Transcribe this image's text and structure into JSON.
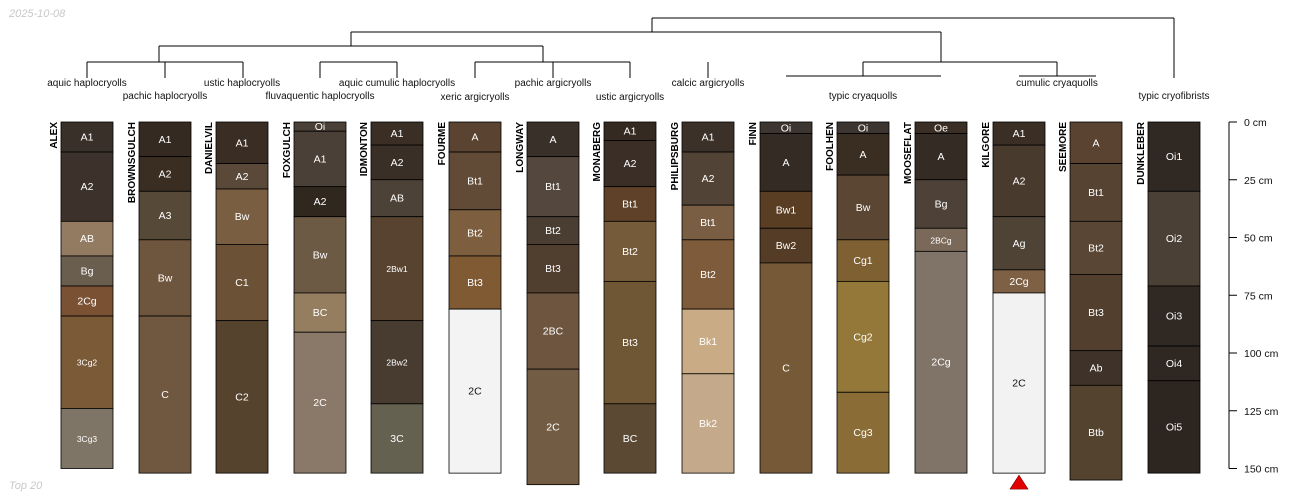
{
  "date_label": "2025-10-08",
  "footer_label": "Top 20",
  "scale": {
    "max_depth": 150,
    "unit": "cm",
    "ticks": [
      {
        "depth": 0,
        "label": "0 cm"
      },
      {
        "depth": 25,
        "label": "25 cm"
      },
      {
        "depth": 50,
        "label": "50 cm"
      },
      {
        "depth": 75,
        "label": "75 cm"
      },
      {
        "depth": 100,
        "label": "100 cm"
      },
      {
        "depth": 125,
        "label": "125 cm"
      },
      {
        "depth": 150,
        "label": "150 cm"
      }
    ]
  },
  "taxa": [
    {
      "label": "aquic haplocryolls"
    },
    {
      "label": "pachic haplocryolls"
    },
    {
      "label": "ustic haplocryolls"
    },
    {
      "label": "fluvaquentic haplocryolls"
    },
    {
      "label": "aquic cumulic haplocryolls"
    },
    {
      "label": "xeric argicryolls"
    },
    {
      "label": "pachic argicryolls"
    },
    {
      "label": "ustic argicryolls"
    },
    {
      "label": "calcic argicryolls"
    },
    {
      "label": "typic cryaquolls"
    },
    {
      "label": "cumulic cryaquolls"
    },
    {
      "label": "typic cryofibrists"
    }
  ],
  "profiles": [
    {
      "name": "ALEX",
      "horizons": [
        {
          "name": "A1",
          "top": 0,
          "bottom": 13,
          "color": "#3a302a"
        },
        {
          "name": "A2",
          "top": 13,
          "bottom": 43,
          "color": "#3c322b"
        },
        {
          "name": "AB",
          "top": 43,
          "bottom": 58,
          "color": "#937b62"
        },
        {
          "name": "Bg",
          "top": 58,
          "bottom": 71,
          "color": "#6a5e4e"
        },
        {
          "name": "2Cg",
          "top": 71,
          "bottom": 84,
          "color": "#7a5233"
        },
        {
          "name": "3Cg2",
          "top": 84,
          "bottom": 124,
          "color": "#7a5a37"
        },
        {
          "name": "3Cg3",
          "top": 124,
          "bottom": 150,
          "color": "#7e7566"
        }
      ]
    },
    {
      "name": "BROWNSGULCH",
      "horizons": [
        {
          "name": "A1",
          "top": 0,
          "bottom": 15,
          "color": "#352a22"
        },
        {
          "name": "A2",
          "top": 15,
          "bottom": 30,
          "color": "#3a2d22"
        },
        {
          "name": "A3",
          "top": 30,
          "bottom": 51,
          "color": "#574938"
        },
        {
          "name": "Bw",
          "top": 51,
          "bottom": 84,
          "color": "#6e553d"
        },
        {
          "name": "C",
          "top": 84,
          "bottom": 152,
          "color": "#705840"
        }
      ]
    },
    {
      "name": "DANIELVIL",
      "horizons": [
        {
          "name": "A1",
          "top": 0,
          "bottom": 18,
          "color": "#3a2d24"
        },
        {
          "name": "A2",
          "top": 18,
          "bottom": 29,
          "color": "#5a4838"
        },
        {
          "name": "Bw",
          "top": 29,
          "bottom": 53,
          "color": "#7a5e41"
        },
        {
          "name": "C1",
          "top": 53,
          "bottom": 86,
          "color": "#6b5236"
        },
        {
          "name": "C2",
          "top": 86,
          "bottom": 152,
          "color": "#56432d"
        }
      ]
    },
    {
      "name": "FOXGULCH",
      "horizons": [
        {
          "name": "Oi",
          "top": 0,
          "bottom": 4,
          "color": "#4a4037"
        },
        {
          "name": "A1",
          "top": 4,
          "bottom": 28,
          "color": "#4b4037"
        },
        {
          "name": "A2",
          "top": 28,
          "bottom": 41,
          "color": "#30271f"
        },
        {
          "name": "Bw",
          "top": 41,
          "bottom": 74,
          "color": "#6d5a45"
        },
        {
          "name": "BC",
          "top": 74,
          "bottom": 91,
          "color": "#957d5f"
        },
        {
          "name": "2C",
          "top": 91,
          "bottom": 152,
          "color": "#8a7868"
        }
      ]
    },
    {
      "name": "IDMONTON",
      "horizons": [
        {
          "name": "A1",
          "top": 0,
          "bottom": 10,
          "color": "#3a2e25"
        },
        {
          "name": "A2",
          "top": 10,
          "bottom": 25,
          "color": "#3a2f26"
        },
        {
          "name": "AB",
          "top": 25,
          "bottom": 41,
          "color": "#4d4238"
        },
        {
          "name": "2Bw1",
          "top": 41,
          "bottom": 86,
          "color": "#574330"
        },
        {
          "name": "2Bw2",
          "top": 86,
          "bottom": 122,
          "color": "#483c31"
        },
        {
          "name": "3C",
          "top": 122,
          "bottom": 152,
          "color": "#656151"
        }
      ]
    },
    {
      "name": "FOURME",
      "horizons": [
        {
          "name": "A",
          "top": 0,
          "bottom": 13,
          "color": "#5a4330"
        },
        {
          "name": "Bt1",
          "top": 13,
          "bottom": 38,
          "color": "#614b36"
        },
        {
          "name": "Bt2",
          "top": 38,
          "bottom": 58,
          "color": "#7d5f40"
        },
        {
          "name": "Bt3",
          "top": 58,
          "bottom": 81,
          "color": "#805a33"
        },
        {
          "name": "2C",
          "top": 81,
          "bottom": 152,
          "color": "#f3f3f3"
        }
      ]
    },
    {
      "name": "LONGWAY",
      "horizons": [
        {
          "name": "A",
          "top": 0,
          "bottom": 15,
          "color": "#3a302a"
        },
        {
          "name": "Bt1",
          "top": 15,
          "bottom": 41,
          "color": "#54483e"
        },
        {
          "name": "Bt2",
          "top": 41,
          "bottom": 53,
          "color": "#4a3e33"
        },
        {
          "name": "Bt3",
          "top": 53,
          "bottom": 74,
          "color": "#503e2e"
        },
        {
          "name": "2BC",
          "top": 74,
          "bottom": 107,
          "color": "#6d5540"
        },
        {
          "name": "2C",
          "top": 107,
          "bottom": 157,
          "color": "#735c44"
        }
      ]
    },
    {
      "name": "MONABERG",
      "horizons": [
        {
          "name": "A1",
          "top": 0,
          "bottom": 8,
          "color": "#352a22"
        },
        {
          "name": "A2",
          "top": 8,
          "bottom": 28,
          "color": "#3a2e26"
        },
        {
          "name": "Bt1",
          "top": 28,
          "bottom": 43,
          "color": "#5e4128"
        },
        {
          "name": "Bt2",
          "top": 43,
          "bottom": 69,
          "color": "#755b3a"
        },
        {
          "name": "Bt3",
          "top": 69,
          "bottom": 122,
          "color": "#6f5634"
        },
        {
          "name": "BC",
          "top": 122,
          "bottom": 152,
          "color": "#5b4934"
        }
      ]
    },
    {
      "name": "PHILIPSBURG",
      "horizons": [
        {
          "name": "A1",
          "top": 0,
          "bottom": 13,
          "color": "#3c3129"
        },
        {
          "name": "A2",
          "top": 13,
          "bottom": 36,
          "color": "#514436"
        },
        {
          "name": "Bt1",
          "top": 36,
          "bottom": 51,
          "color": "#7a5e43"
        },
        {
          "name": "Bt2",
          "top": 51,
          "bottom": 81,
          "color": "#7e5c3b"
        },
        {
          "name": "Bk1",
          "top": 81,
          "bottom": 109,
          "color": "#c9ab85"
        },
        {
          "name": "Bk2",
          "top": 109,
          "bottom": 152,
          "color": "#c4aa8a"
        }
      ]
    },
    {
      "name": "FINN",
      "horizons": [
        {
          "name": "Oi",
          "top": 0,
          "bottom": 5,
          "color": "#3c3530"
        },
        {
          "name": "A",
          "top": 5,
          "bottom": 30,
          "color": "#342b25"
        },
        {
          "name": "Bw1",
          "top": 30,
          "bottom": 46,
          "color": "#5a3e24"
        },
        {
          "name": "Bw2",
          "top": 46,
          "bottom": 61,
          "color": "#543c26"
        },
        {
          "name": "C",
          "top": 61,
          "bottom": 152,
          "color": "#765a37"
        }
      ]
    },
    {
      "name": "FOOLHEN",
      "horizons": [
        {
          "name": "Oi",
          "top": 0,
          "bottom": 5,
          "color": "#3c3530"
        },
        {
          "name": "A",
          "top": 5,
          "bottom": 23,
          "color": "#3a2e23"
        },
        {
          "name": "Bw",
          "top": 23,
          "bottom": 51,
          "color": "#5a4633"
        },
        {
          "name": "Cg1",
          "top": 51,
          "bottom": 69,
          "color": "#7e6032"
        },
        {
          "name": "Cg2",
          "top": 69,
          "bottom": 117,
          "color": "#94783a"
        },
        {
          "name": "Cg3",
          "top": 117,
          "bottom": 152,
          "color": "#8a6d36"
        }
      ]
    },
    {
      "name": "MOOSEFLAT",
      "horizons": [
        {
          "name": "Oe",
          "top": 0,
          "bottom": 5,
          "color": "#3a2e25"
        },
        {
          "name": "A",
          "top": 5,
          "bottom": 25,
          "color": "#342b25"
        },
        {
          "name": "Bg",
          "top": 25,
          "bottom": 46,
          "color": "#4e4238"
        },
        {
          "name": "2BCg",
          "top": 46,
          "bottom": 56,
          "color": "#7a6858"
        },
        {
          "name": "2Cg",
          "top": 56,
          "bottom": 152,
          "color": "#807468"
        }
      ]
    },
    {
      "name": "KILGORE",
      "truncated": true,
      "horizons": [
        {
          "name": "A1",
          "top": 0,
          "bottom": 10,
          "color": "#3a2e25"
        },
        {
          "name": "A2",
          "top": 10,
          "bottom": 41,
          "color": "#493a2e"
        },
        {
          "name": "Ag",
          "top": 41,
          "bottom": 64,
          "color": "#4f4335"
        },
        {
          "name": "2Cg",
          "top": 64,
          "bottom": 74,
          "color": "#7e6044"
        },
        {
          "name": "2C",
          "top": 74,
          "bottom": 152,
          "color": "#f2f2f2"
        }
      ]
    },
    {
      "name": "SEEMORE",
      "horizons": [
        {
          "name": "A",
          "top": 0,
          "bottom": 18,
          "color": "#5a4330"
        },
        {
          "name": "Bt1",
          "top": 18,
          "bottom": 43,
          "color": "#574332"
        },
        {
          "name": "Bt2",
          "top": 43,
          "bottom": 66,
          "color": "#5a4634"
        },
        {
          "name": "Bt3",
          "top": 66,
          "bottom": 99,
          "color": "#533f2e"
        },
        {
          "name": "Ab",
          "top": 99,
          "bottom": 114,
          "color": "#3e3229"
        },
        {
          "name": "Btb",
          "top": 114,
          "bottom": 155,
          "color": "#54432f"
        }
      ]
    },
    {
      "name": "DUNKLEBER",
      "horizons": [
        {
          "name": "Oi1",
          "top": 0,
          "bottom": 30,
          "color": "#2f2823"
        },
        {
          "name": "Oi2",
          "top": 30,
          "bottom": 71,
          "color": "#4b4036"
        },
        {
          "name": "Oi3",
          "top": 71,
          "bottom": 97,
          "color": "#2f2823"
        },
        {
          "name": "Oi4",
          "top": 97,
          "bottom": 112,
          "color": "#2e2722"
        },
        {
          "name": "Oi5",
          "top": 112,
          "bottom": 152,
          "color": "#2c2520"
        }
      ]
    }
  ]
}
